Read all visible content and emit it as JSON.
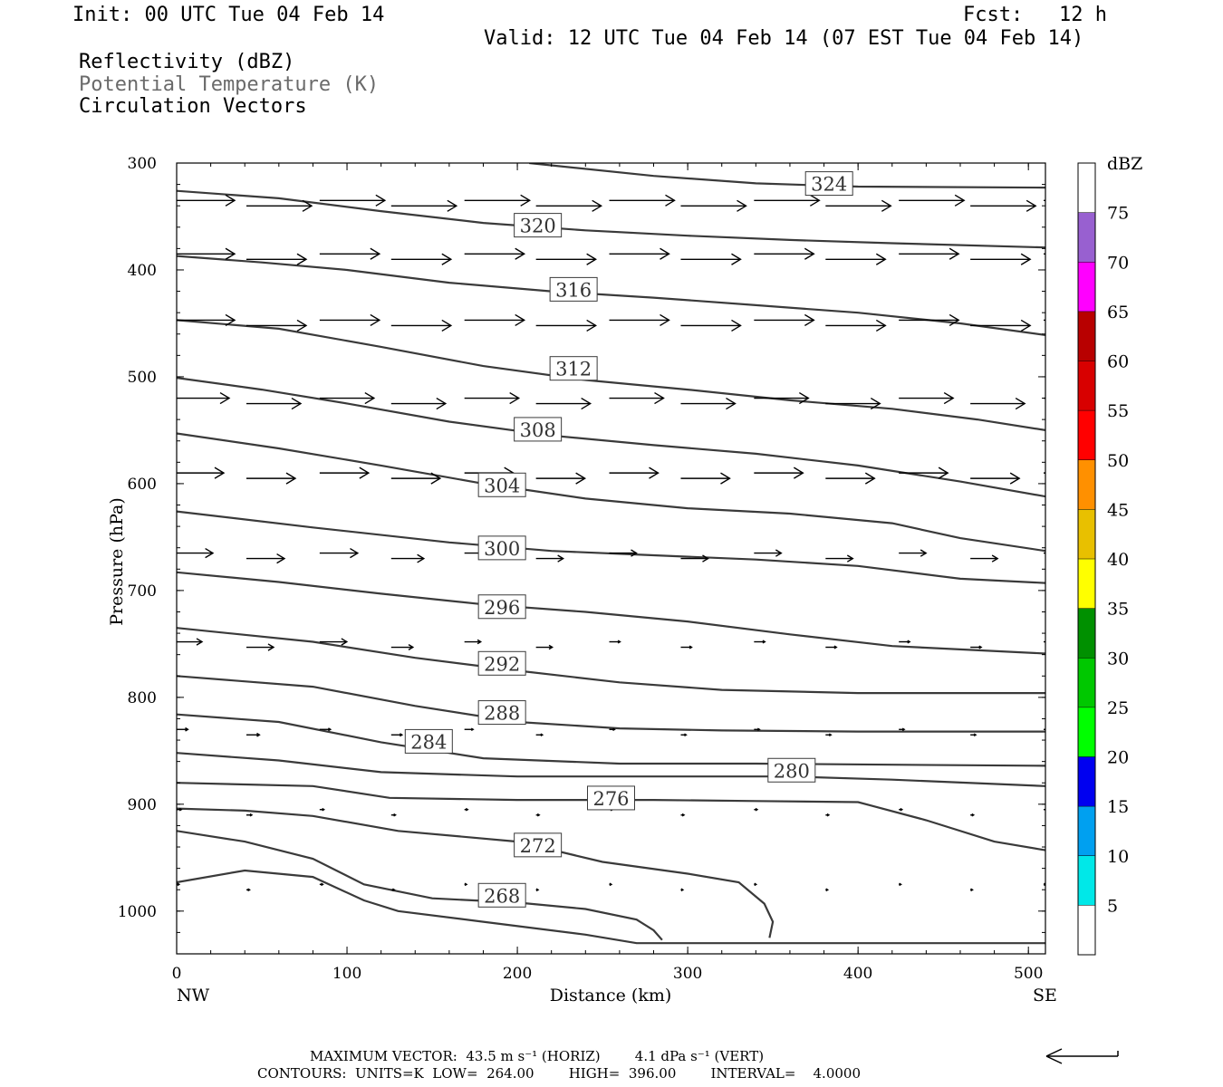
{
  "header": {
    "init": "Init: 00 UTC Tue 04 Feb 14",
    "fcst": "Fcst:   12 h",
    "valid": "Valid: 12 UTC Tue 04 Feb 14 (07 EST Tue 04 Feb 14)",
    "field1": "Reflectivity (dBZ)",
    "field2": "Potential Temperature (K)",
    "field3": "Circulation Vectors"
  },
  "footer": {
    "max_vector": "MAXIMUM VECTOR:  43.5 m s⁻¹ (HORIZ)        4.1 dPa s⁻¹ (VERT)",
    "contours": "CONTOURS:  UNITS=K  LOW=  264.00        HIGH=  396.00        INTERVAL=    4.0000"
  },
  "colors": {
    "contour": "#3a3a3a",
    "frame": "#000000",
    "colorbar": [
      "#ffffff",
      "#00e8e8",
      "#00a0f0",
      "#0000f0",
      "#00ff00",
      "#00c800",
      "#009000",
      "#ffff00",
      "#e8c000",
      "#ff9000",
      "#ff0000",
      "#d80000",
      "#b80000",
      "#ff00ff",
      "#9860d0",
      "#ffffff"
    ]
  },
  "chart_data": {
    "type": "line",
    "subtype": "vertical-cross-section",
    "xlabel": "Distance (km)",
    "ylabel": "Pressure (hPa)",
    "xlim": [
      0,
      510
    ],
    "ylim": [
      300,
      1040
    ],
    "y_inverted": true,
    "x_ticks": [
      0,
      100,
      200,
      300,
      400,
      500
    ],
    "x_tick_labels": [
      "0",
      "100",
      "200",
      "300",
      "400",
      "500"
    ],
    "y_ticks": [
      300,
      400,
      500,
      600,
      700,
      800,
      900,
      1000
    ],
    "y_tick_labels": [
      "300",
      "400",
      "500",
      "600",
      "700",
      "800",
      "900",
      "1000"
    ],
    "x_end_labels": [
      "NW",
      "SE"
    ],
    "colorbar": {
      "unit_label": "dBZ",
      "levels": [
        5,
        10,
        15,
        20,
        25,
        30,
        35,
        40,
        45,
        50,
        55,
        60,
        65,
        70,
        75
      ],
      "level_labels": [
        "5",
        "10",
        "15",
        "20",
        "25",
        "30",
        "35",
        "40",
        "45",
        "50",
        "55",
        "60",
        "65",
        "70",
        "75"
      ]
    },
    "contours": [
      {
        "label": "324",
        "label_at": [
          383,
          320
        ],
        "points": [
          [
            207,
            300
          ],
          [
            280,
            312
          ],
          [
            340,
            319
          ],
          [
            400,
            322
          ],
          [
            510,
            323
          ]
        ]
      },
      {
        "label": "320",
        "label_at": [
          212,
          359
        ],
        "points": [
          [
            0,
            326
          ],
          [
            60,
            333
          ],
          [
            120,
            345
          ],
          [
            180,
            356
          ],
          [
            240,
            363
          ],
          [
            300,
            368
          ],
          [
            360,
            372
          ],
          [
            420,
            375
          ],
          [
            510,
            379
          ]
        ]
      },
      {
        "label": "316",
        "label_at": [
          233,
          419
        ],
        "points": [
          [
            0,
            387
          ],
          [
            50,
            393
          ],
          [
            100,
            400
          ],
          [
            160,
            412
          ],
          [
            220,
            420
          ],
          [
            280,
            426
          ],
          [
            340,
            433
          ],
          [
            400,
            440
          ],
          [
            460,
            450
          ],
          [
            510,
            461
          ]
        ]
      },
      {
        "label": "312",
        "label_at": [
          233,
          493
        ],
        "points": [
          [
            0,
            447
          ],
          [
            60,
            455
          ],
          [
            120,
            472
          ],
          [
            180,
            490
          ],
          [
            240,
            503
          ],
          [
            300,
            512
          ],
          [
            360,
            522
          ],
          [
            420,
            530
          ],
          [
            470,
            540
          ],
          [
            510,
            550
          ]
        ]
      },
      {
        "label": "308",
        "label_at": [
          212,
          550
        ],
        "points": [
          [
            0,
            501
          ],
          [
            50,
            512
          ],
          [
            100,
            525
          ],
          [
            160,
            542
          ],
          [
            220,
            555
          ],
          [
            280,
            564
          ],
          [
            340,
            572
          ],
          [
            400,
            583
          ],
          [
            460,
            598
          ],
          [
            510,
            612
          ]
        ]
      },
      {
        "label": "304",
        "label_at": [
          191,
          602
        ],
        "points": [
          [
            0,
            553
          ],
          [
            60,
            567
          ],
          [
            120,
            583
          ],
          [
            180,
            600
          ],
          [
            240,
            614
          ],
          [
            300,
            623
          ],
          [
            360,
            628
          ],
          [
            420,
            637
          ],
          [
            460,
            651
          ],
          [
            510,
            663
          ]
        ]
      },
      {
        "label": "300",
        "label_at": [
          191,
          661
        ],
        "points": [
          [
            0,
            626
          ],
          [
            80,
            641
          ],
          [
            160,
            655
          ],
          [
            220,
            663
          ],
          [
            280,
            667
          ],
          [
            340,
            671
          ],
          [
            400,
            677
          ],
          [
            460,
            689
          ],
          [
            510,
            693
          ]
        ]
      },
      {
        "label": "296",
        "label_at": [
          191,
          716
        ],
        "points": [
          [
            0,
            683
          ],
          [
            60,
            692
          ],
          [
            120,
            703
          ],
          [
            180,
            713
          ],
          [
            240,
            720
          ],
          [
            300,
            729
          ],
          [
            360,
            741
          ],
          [
            420,
            752
          ],
          [
            510,
            759
          ]
        ]
      },
      {
        "label": "292",
        "label_at": [
          191,
          769
        ],
        "points": [
          [
            0,
            735
          ],
          [
            80,
            748
          ],
          [
            140,
            763
          ],
          [
            200,
            775
          ],
          [
            260,
            786
          ],
          [
            320,
            793
          ],
          [
            400,
            796
          ],
          [
            510,
            796
          ]
        ]
      },
      {
        "label": "288",
        "label_at": [
          191,
          815
        ],
        "points": [
          [
            0,
            780
          ],
          [
            80,
            790
          ],
          [
            140,
            808
          ],
          [
            200,
            823
          ],
          [
            260,
            829
          ],
          [
            320,
            831
          ],
          [
            400,
            832
          ],
          [
            510,
            832
          ]
        ]
      },
      {
        "label": "284",
        "label_at": [
          148,
          842
        ],
        "points": [
          [
            0,
            816
          ],
          [
            60,
            823
          ],
          [
            120,
            842
          ],
          [
            180,
            857
          ],
          [
            260,
            862
          ],
          [
            340,
            862
          ],
          [
            420,
            863
          ],
          [
            510,
            864
          ]
        ]
      },
      {
        "label": "280",
        "label_at": [
          361,
          869
        ],
        "points": [
          [
            0,
            852
          ],
          [
            60,
            859
          ],
          [
            120,
            870
          ],
          [
            200,
            874
          ],
          [
            280,
            874
          ],
          [
            360,
            874
          ],
          [
            420,
            877
          ],
          [
            510,
            883
          ]
        ]
      },
      {
        "label": "276",
        "label_at": [
          255,
          895
        ],
        "points": [
          [
            0,
            880
          ],
          [
            80,
            883
          ],
          [
            125,
            894
          ],
          [
            200,
            896
          ],
          [
            280,
            896
          ],
          [
            340,
            897
          ],
          [
            400,
            898
          ],
          [
            440,
            915
          ],
          [
            480,
            935
          ],
          [
            510,
            943
          ]
        ]
      },
      {
        "label": "272",
        "label_at": [
          212,
          939
        ],
        "points": [
          [
            0,
            904
          ],
          [
            40,
            906
          ],
          [
            80,
            911
          ],
          [
            130,
            925
          ],
          [
            200,
            935
          ],
          [
            250,
            954
          ],
          [
            300,
            965
          ],
          [
            330,
            973
          ],
          [
            345,
            993
          ],
          [
            350,
            1010
          ],
          [
            348,
            1025
          ]
        ]
      },
      {
        "label": "268",
        "label_at": [
          191,
          986
        ],
        "points": [
          [
            0,
            925
          ],
          [
            40,
            935
          ],
          [
            80,
            951
          ],
          [
            110,
            975
          ],
          [
            150,
            988
          ],
          [
            200,
            992
          ],
          [
            240,
            998
          ],
          [
            270,
            1008
          ],
          [
            280,
            1018
          ],
          [
            285,
            1027
          ]
        ]
      },
      {
        "label": "",
        "label_at": null,
        "points": [
          [
            0,
            973
          ],
          [
            40,
            962
          ],
          [
            80,
            968
          ],
          [
            110,
            990
          ],
          [
            130,
            1000
          ],
          [
            180,
            1010
          ],
          [
            240,
            1022
          ],
          [
            270,
            1030
          ],
          [
            510,
            1030
          ]
        ]
      }
    ],
    "vectors_note": "horizontal circulation vectors (u, w) on a regular grid; arrow length scales with wind speed",
    "vectors": [
      {
        "p": 335,
        "x": [
          0,
          42,
          85,
          127,
          170,
          212,
          255,
          297,
          340,
          382,
          425,
          467,
          510
        ],
        "speed": [
          0.55,
          0.6,
          0.6,
          0.6,
          0.6,
          0.6,
          0.6,
          0.6,
          0.6,
          0.6,
          0.6,
          0.6,
          0.6
        ]
      },
      {
        "p": 385,
        "x": [
          0,
          42,
          85,
          127,
          170,
          212,
          255,
          297,
          340,
          382,
          425,
          467,
          510
        ],
        "speed": [
          0.55,
          0.55,
          0.55,
          0.55,
          0.55,
          0.55,
          0.55,
          0.55,
          0.55,
          0.55,
          0.55,
          0.55,
          0.55
        ]
      },
      {
        "p": 447,
        "x": [
          0,
          42,
          85,
          127,
          170,
          212,
          255,
          297,
          340,
          382,
          425,
          467,
          510
        ],
        "speed": [
          0.55,
          0.55,
          0.55,
          0.55,
          0.55,
          0.55,
          0.55,
          0.55,
          0.55,
          0.55,
          0.55,
          0.55,
          0.55
        ]
      },
      {
        "p": 520,
        "x": [
          0,
          42,
          85,
          127,
          170,
          212,
          255,
          297,
          340,
          382,
          425,
          467,
          510
        ],
        "speed": [
          0.5,
          0.5,
          0.5,
          0.5,
          0.5,
          0.5,
          0.5,
          0.5,
          0.5,
          0.5,
          0.5,
          0.5,
          0.5
        ]
      },
      {
        "p": 590,
        "x": [
          0,
          42,
          85,
          127,
          170,
          212,
          255,
          297,
          340,
          382,
          425,
          467,
          510
        ],
        "speed": [
          0.45,
          0.45,
          0.45,
          0.45,
          0.45,
          0.45,
          0.45,
          0.45,
          0.45,
          0.45,
          0.45,
          0.45,
          0.45
        ]
      },
      {
        "p": 665,
        "x": [
          0,
          42,
          85,
          127,
          170,
          212,
          255,
          297,
          340,
          382,
          425,
          467,
          510
        ],
        "speed": [
          0.35,
          0.35,
          0.35,
          0.3,
          0.3,
          0.25,
          0.25,
          0.25,
          0.25,
          0.25,
          0.25,
          0.25,
          0.25
        ]
      },
      {
        "p": 748,
        "x": [
          0,
          42,
          85,
          127,
          170,
          212,
          255,
          297,
          340,
          382,
          425,
          467,
          510
        ],
        "speed": [
          0.25,
          0.25,
          0.25,
          0.2,
          0.15,
          0.15,
          0.1,
          0.1,
          0.1,
          0.1,
          0.1,
          0.1,
          0.1
        ]
      },
      {
        "p": 830,
        "x": [
          0,
          42,
          85,
          127,
          170,
          212,
          255,
          297,
          340,
          382,
          425,
          467,
          510
        ],
        "speed": [
          0.12,
          0.12,
          0.1,
          0.1,
          0.08,
          0.06,
          0.05,
          0.05,
          0.05,
          0.05,
          0.05,
          0.05,
          0.05
        ]
      },
      {
        "p": 905,
        "x": [
          0,
          42,
          85,
          127,
          170,
          212,
          255,
          297,
          340,
          382,
          425,
          467,
          510
        ],
        "speed": [
          0.06,
          0.05,
          0.04,
          0.04,
          0.03,
          0.03,
          0.03,
          0.03,
          0.03,
          0.03,
          0.03,
          0.03,
          0.03
        ]
      },
      {
        "p": 975,
        "x": [
          0,
          42,
          85,
          127,
          170,
          212,
          255,
          297,
          340,
          382,
          425,
          467,
          510
        ],
        "speed": [
          0.04,
          0.03,
          0.03,
          0.03,
          0.02,
          0.02,
          0.02,
          0.02,
          0.02,
          0.02,
          0.02,
          0.02,
          0.02
        ]
      }
    ]
  }
}
